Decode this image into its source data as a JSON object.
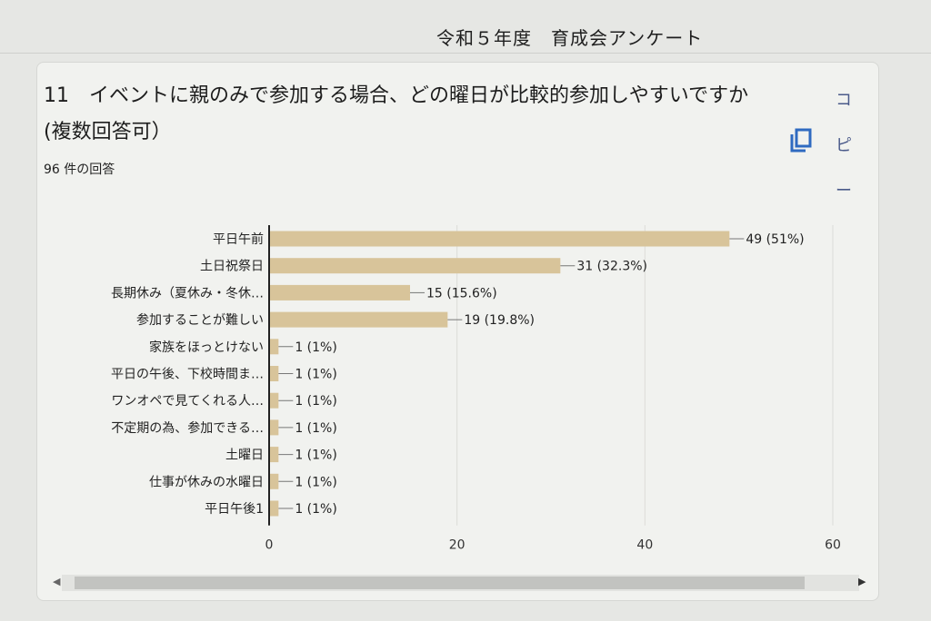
{
  "header": {
    "doc_title": "令和５年度　育成会アンケート"
  },
  "question": {
    "title": "11　イベントに親のみで参加する場合、どの曜日が比較的参加しやすいですか(複数回答可）",
    "response_count": "96 件の回答"
  },
  "copy": {
    "label_chars": [
      "コ",
      "ピ",
      "ー"
    ],
    "icon": "copy-icon"
  },
  "colors": {
    "bar": "#d8c49a",
    "axis": "#222222",
    "grid": "#dcdcd8"
  },
  "chart_data": {
    "type": "bar",
    "orientation": "horizontal",
    "categories": [
      "平日午前",
      "土日祝祭日",
      "長期休み（夏休み・冬休…",
      "参加することが難しい",
      "家族をほっとけない",
      "平日の午後、下校時間ま…",
      "ワンオペで見てくれる人…",
      "不定期の為、参加できる…",
      "土曜日",
      "仕事が休みの水曜日",
      "平日午後1"
    ],
    "values": [
      49,
      31,
      15,
      19,
      1,
      1,
      1,
      1,
      1,
      1,
      1
    ],
    "data_labels": [
      "49 (51%)",
      "31 (32.3%)",
      "15 (15.6%)",
      "19 (19.8%)",
      "1 (1%)",
      "1 (1%)",
      "1 (1%)",
      "1 (1%)",
      "1 (1%)",
      "1 (1%)",
      "1 (1%)"
    ],
    "xlim": [
      0,
      60
    ],
    "xticks": [
      "0",
      "20",
      "40",
      "60"
    ],
    "xtick_values": [
      0,
      20,
      40,
      60
    ],
    "grid": true
  }
}
